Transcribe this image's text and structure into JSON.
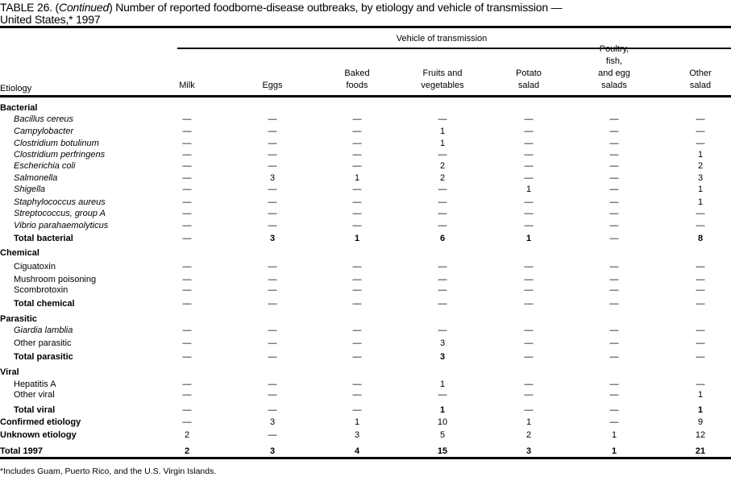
{
  "title": {
    "prefix": "TABLE 26. (",
    "continued": "Continued",
    "text": ") Number of reported foodborne-disease  outbreaks, by etiology and vehicle of transmission —",
    "line2": "United States,* 1997"
  },
  "header": {
    "group_label": "Vehicle of transmission",
    "etiology": "Etiology",
    "columns": [
      [
        "Milk"
      ],
      [
        "Eggs"
      ],
      [
        "Baked",
        "foods"
      ],
      [
        "Fruits and",
        "vegetables"
      ],
      [
        "Potato",
        "salad"
      ],
      [
        "Poultry,",
        "fish,",
        "and egg",
        "salads"
      ],
      [
        "Other",
        "salad"
      ]
    ]
  },
  "rows": [
    {
      "label": "Bacterial",
      "type": "section",
      "values": []
    },
    {
      "label": "Bacillus cereus",
      "type": "item",
      "italic": true,
      "values": [
        "—",
        "—",
        "—",
        "—",
        "—",
        "—",
        "—"
      ]
    },
    {
      "label": "Campylobacter",
      "type": "item",
      "italic": true,
      "values": [
        "—",
        "—",
        "—",
        "1",
        "—",
        "—",
        "—"
      ]
    },
    {
      "label": "Clostridium botulinum",
      "type": "item",
      "italic": true,
      "values": [
        "—",
        "—",
        "—",
        "1",
        "—",
        "—",
        "—"
      ]
    },
    {
      "label": "Clostridium perfringens",
      "type": "item",
      "italic": true,
      "values": [
        "—",
        "—",
        "—",
        "—",
        "—",
        "—",
        "1"
      ]
    },
    {
      "label": "Escherichia coli",
      "type": "item",
      "italic": true,
      "values": [
        "—",
        "—",
        "—",
        "2",
        "—",
        "—",
        "2"
      ]
    },
    {
      "label": "Salmonella",
      "type": "item",
      "italic": true,
      "values": [
        "—",
        "3",
        "1",
        "2",
        "—",
        "—",
        "3"
      ]
    },
    {
      "label": "Shigella",
      "type": "item",
      "italic": true,
      "values": [
        "—",
        "—",
        "—",
        "—",
        "1",
        "—",
        "1"
      ]
    },
    {
      "label": "Staphylococcus aureus",
      "type": "item",
      "italic": true,
      "values": [
        "—",
        "—",
        "—",
        "—",
        "—",
        "—",
        "1"
      ]
    },
    {
      "label": "Streptococcus, group A",
      "type": "item",
      "italic": true,
      "values": [
        "—",
        "—",
        "—",
        "—",
        "—",
        "—",
        "—"
      ]
    },
    {
      "label": "Vibrio parahaemolyticus",
      "type": "item",
      "italic": true,
      "values": [
        "—",
        "—",
        "—",
        "—",
        "—",
        "—",
        "—"
      ]
    },
    {
      "label": "Total bacterial",
      "type": "subtotal",
      "values": [
        "—",
        "3",
        "1",
        "6",
        "1",
        "—",
        "8"
      ]
    },
    {
      "label": "Chemical",
      "type": "section",
      "values": []
    },
    {
      "label": "Ciguatoxin",
      "type": "item",
      "values": [
        "—",
        "—",
        "—",
        "—",
        "—",
        "—",
        "—"
      ]
    },
    {
      "label": "Mushroom poisoning",
      "type": "item",
      "values": [
        "—",
        "—",
        "—",
        "—",
        "—",
        "—",
        "—"
      ]
    },
    {
      "label": "Scombrotoxin",
      "type": "item",
      "values": [
        "—",
        "—",
        "—",
        "—",
        "—",
        "—",
        "—"
      ]
    },
    {
      "label": "Total chemical",
      "type": "subtotal",
      "values": [
        "—",
        "—",
        "—",
        "—",
        "—",
        "—",
        "—"
      ]
    },
    {
      "label": "Parasitic",
      "type": "section",
      "values": []
    },
    {
      "label": "Giardia lamblia",
      "type": "item",
      "italic": true,
      "values": [
        "—",
        "—",
        "—",
        "—",
        "—",
        "—",
        "—"
      ]
    },
    {
      "label": "Other parasitic",
      "type": "item",
      "values": [
        "—",
        "—",
        "—",
        "3",
        "—",
        "—",
        "—"
      ]
    },
    {
      "label": "Total parasitic",
      "type": "subtotal",
      "values": [
        "—",
        "—",
        "—",
        "3",
        "—",
        "—",
        "—"
      ]
    },
    {
      "label": "Viral",
      "type": "section",
      "values": []
    },
    {
      "label": "Hepatitis A",
      "type": "item",
      "values": [
        "—",
        "—",
        "—",
        "1",
        "—",
        "—",
        "—"
      ]
    },
    {
      "label": "Other viral",
      "type": "item",
      "values": [
        "—",
        "—",
        "—",
        "—",
        "—",
        "—",
        "1"
      ]
    },
    {
      "label": "Total viral",
      "type": "subtotal",
      "values": [
        "—",
        "—",
        "—",
        "1",
        "—",
        "—",
        "1"
      ]
    },
    {
      "label": "Confirmed etiology",
      "type": "summary",
      "values": [
        "—",
        "3",
        "1",
        "10",
        "1",
        "—",
        "9"
      ]
    },
    {
      "label": "Unknown etiology",
      "type": "summary",
      "values": [
        "2",
        "—",
        "3",
        "5",
        "2",
        "1",
        "12"
      ]
    },
    {
      "label": "Total 1997",
      "type": "total",
      "values": [
        "2",
        "3",
        "4",
        "15",
        "3",
        "1",
        "21"
      ]
    }
  ],
  "footnote": "*Includes Guam, Puerto Rico, and the U.S. Virgin Islands."
}
